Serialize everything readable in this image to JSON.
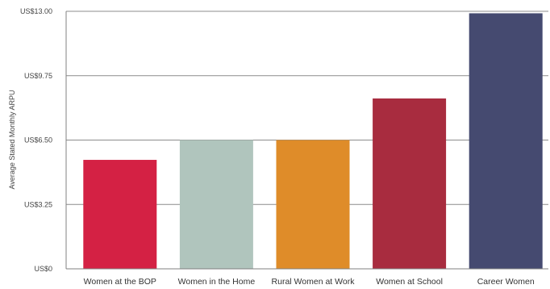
{
  "chart_data": {
    "type": "bar",
    "ylabel": "Average Stated Monthly ARPU",
    "ylim": [
      0,
      13
    ],
    "y_ticks": [
      {
        "value": 0,
        "label": "US$0"
      },
      {
        "value": 3.25,
        "label": "US$3.25"
      },
      {
        "value": 6.5,
        "label": "US$6.50"
      },
      {
        "value": 9.75,
        "label": "US$9.75"
      },
      {
        "value": 13,
        "label": "US$13.00"
      }
    ],
    "grid": true,
    "categories": [
      "Women at the BOP",
      "Women in the Home",
      "Rural Women at Work",
      "Women at School",
      "Career Women"
    ],
    "values": [
      5.5,
      6.5,
      6.5,
      8.6,
      12.9
    ],
    "colors": [
      "#d42144",
      "#b0c5bd",
      "#df8c29",
      "#a82c3f",
      "#454a70"
    ]
  }
}
